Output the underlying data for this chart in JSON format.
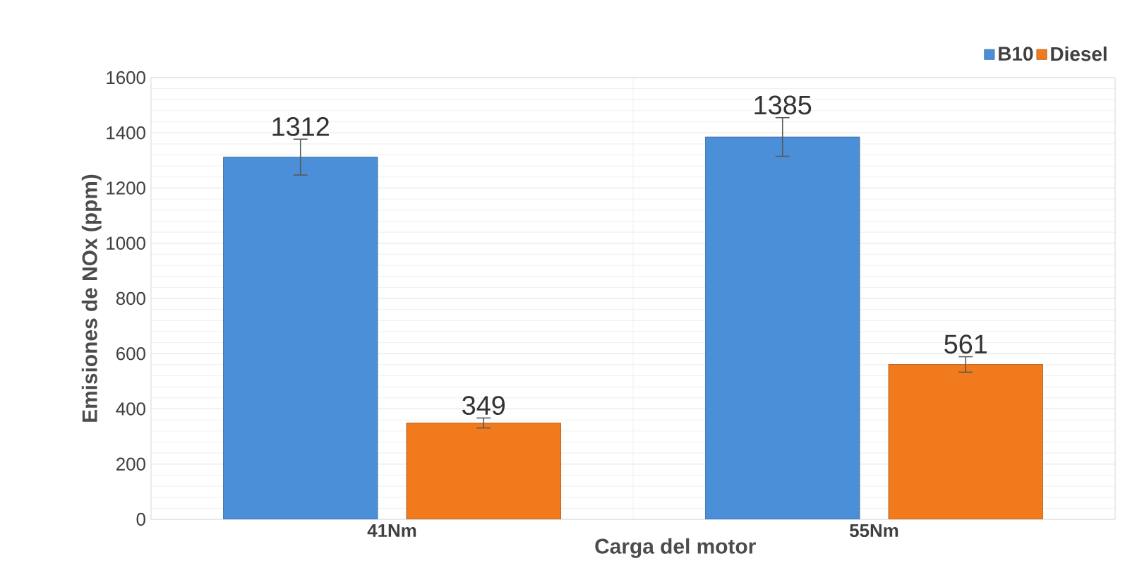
{
  "chart_data": {
    "type": "bar",
    "xlabel": "Carga del motor",
    "ylabel": "Emisiones de NOx (ppm)",
    "categories": [
      "41Nm",
      "55Nm"
    ],
    "series": [
      {
        "name": "B10",
        "color": "#4a8fd8",
        "values": [
          1312,
          1385
        ],
        "errors": [
          65,
          70
        ]
      },
      {
        "name": "Diesel",
        "color": "#f07a1c",
        "values": [
          349,
          561
        ],
        "errors": [
          18,
          28
        ]
      }
    ],
    "ylim": [
      0,
      1600
    ],
    "yticks": [
      0,
      200,
      400,
      600,
      800,
      1000,
      1200,
      1400,
      1600
    ],
    "grid": true,
    "legend": "top right",
    "data_labels": true
  }
}
